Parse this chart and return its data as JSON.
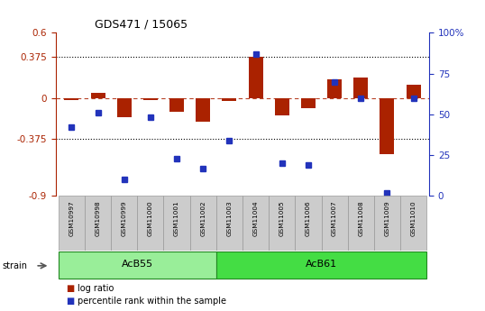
{
  "title": "GDS471 / 15065",
  "samples": [
    "GSM10997",
    "GSM10998",
    "GSM10999",
    "GSM11000",
    "GSM11001",
    "GSM11002",
    "GSM11003",
    "GSM11004",
    "GSM11005",
    "GSM11006",
    "GSM11007",
    "GSM11008",
    "GSM11009",
    "GSM11010"
  ],
  "log_ratio": [
    -0.02,
    0.05,
    -0.18,
    -0.02,
    -0.13,
    -0.22,
    -0.03,
    0.38,
    -0.16,
    -0.09,
    0.17,
    0.19,
    -0.52,
    0.12
  ],
  "percentile": [
    42,
    51,
    10,
    48,
    23,
    17,
    34,
    87,
    20,
    19,
    70,
    60,
    2,
    60
  ],
  "groups": [
    {
      "name": "AcB55",
      "start": 0,
      "end": 5,
      "color": "#99ee99"
    },
    {
      "name": "AcB61",
      "start": 6,
      "end": 13,
      "color": "#44dd44"
    }
  ],
  "bar_color": "#aa2200",
  "dot_color": "#2233bb",
  "left_ylim": [
    -0.9,
    0.6
  ],
  "right_ylim": [
    0,
    100
  ],
  "left_yticks": [
    -0.9,
    -0.375,
    0.0,
    0.375,
    0.6
  ],
  "right_yticks": [
    0,
    25,
    50,
    75,
    100
  ],
  "left_yticklabels": [
    "-0.9",
    "-0.375",
    "0",
    "0.375",
    "0.6"
  ],
  "right_yticklabels": [
    "0",
    "25",
    "50",
    "75",
    "100%"
  ],
  "dotted_lines": [
    0.375,
    -0.375
  ],
  "bar_width": 0.55,
  "background_color": "#ffffff"
}
